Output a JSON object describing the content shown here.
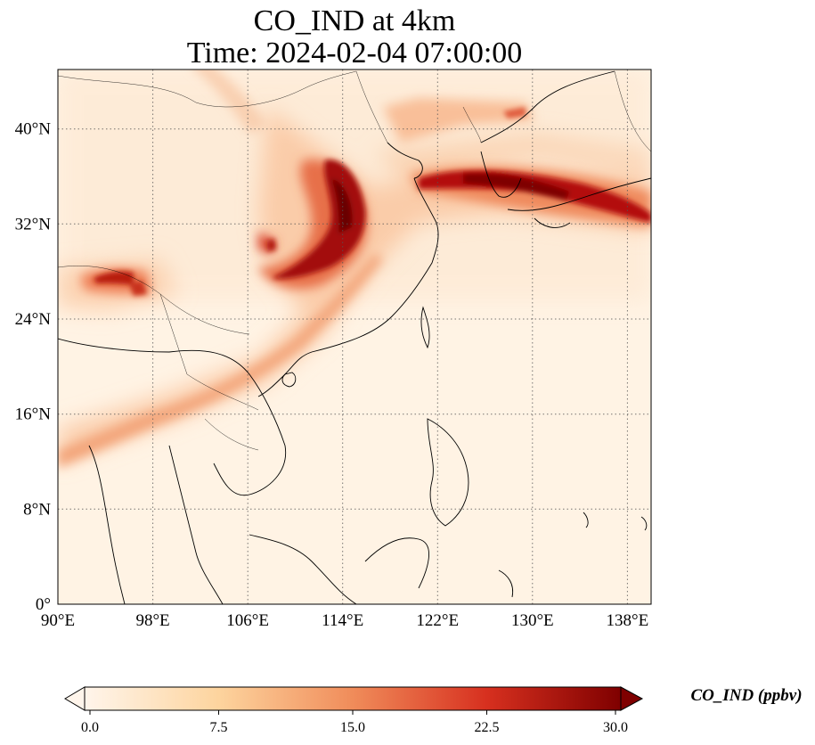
{
  "title": "CO_IND at 4km",
  "subtitle": "Time: 2024-02-04 07:00:00",
  "map": {
    "extent": {
      "lon": [
        90,
        140
      ],
      "lat": [
        0,
        45
      ]
    },
    "lon_ticks": [
      "90°E",
      "98°E",
      "106°E",
      "114°E",
      "122°E",
      "130°E",
      "138°E"
    ],
    "lat_ticks": [
      "0°",
      "8°N",
      "16°N",
      "24°N",
      "32°N",
      "40°N"
    ],
    "gridlines": "dotted",
    "colormap": "OrRd",
    "colors": {
      "low": "#fff5eb",
      "mid": "#f08c5a",
      "high": "#7f0000",
      "coast": "#000000"
    }
  },
  "colorbar": {
    "label": "CO_IND (ppbv)",
    "ticks": [
      "0.0",
      "7.5",
      "15.0",
      "22.5",
      "30.0"
    ],
    "range": [
      0,
      30
    ],
    "extend": "both"
  }
}
